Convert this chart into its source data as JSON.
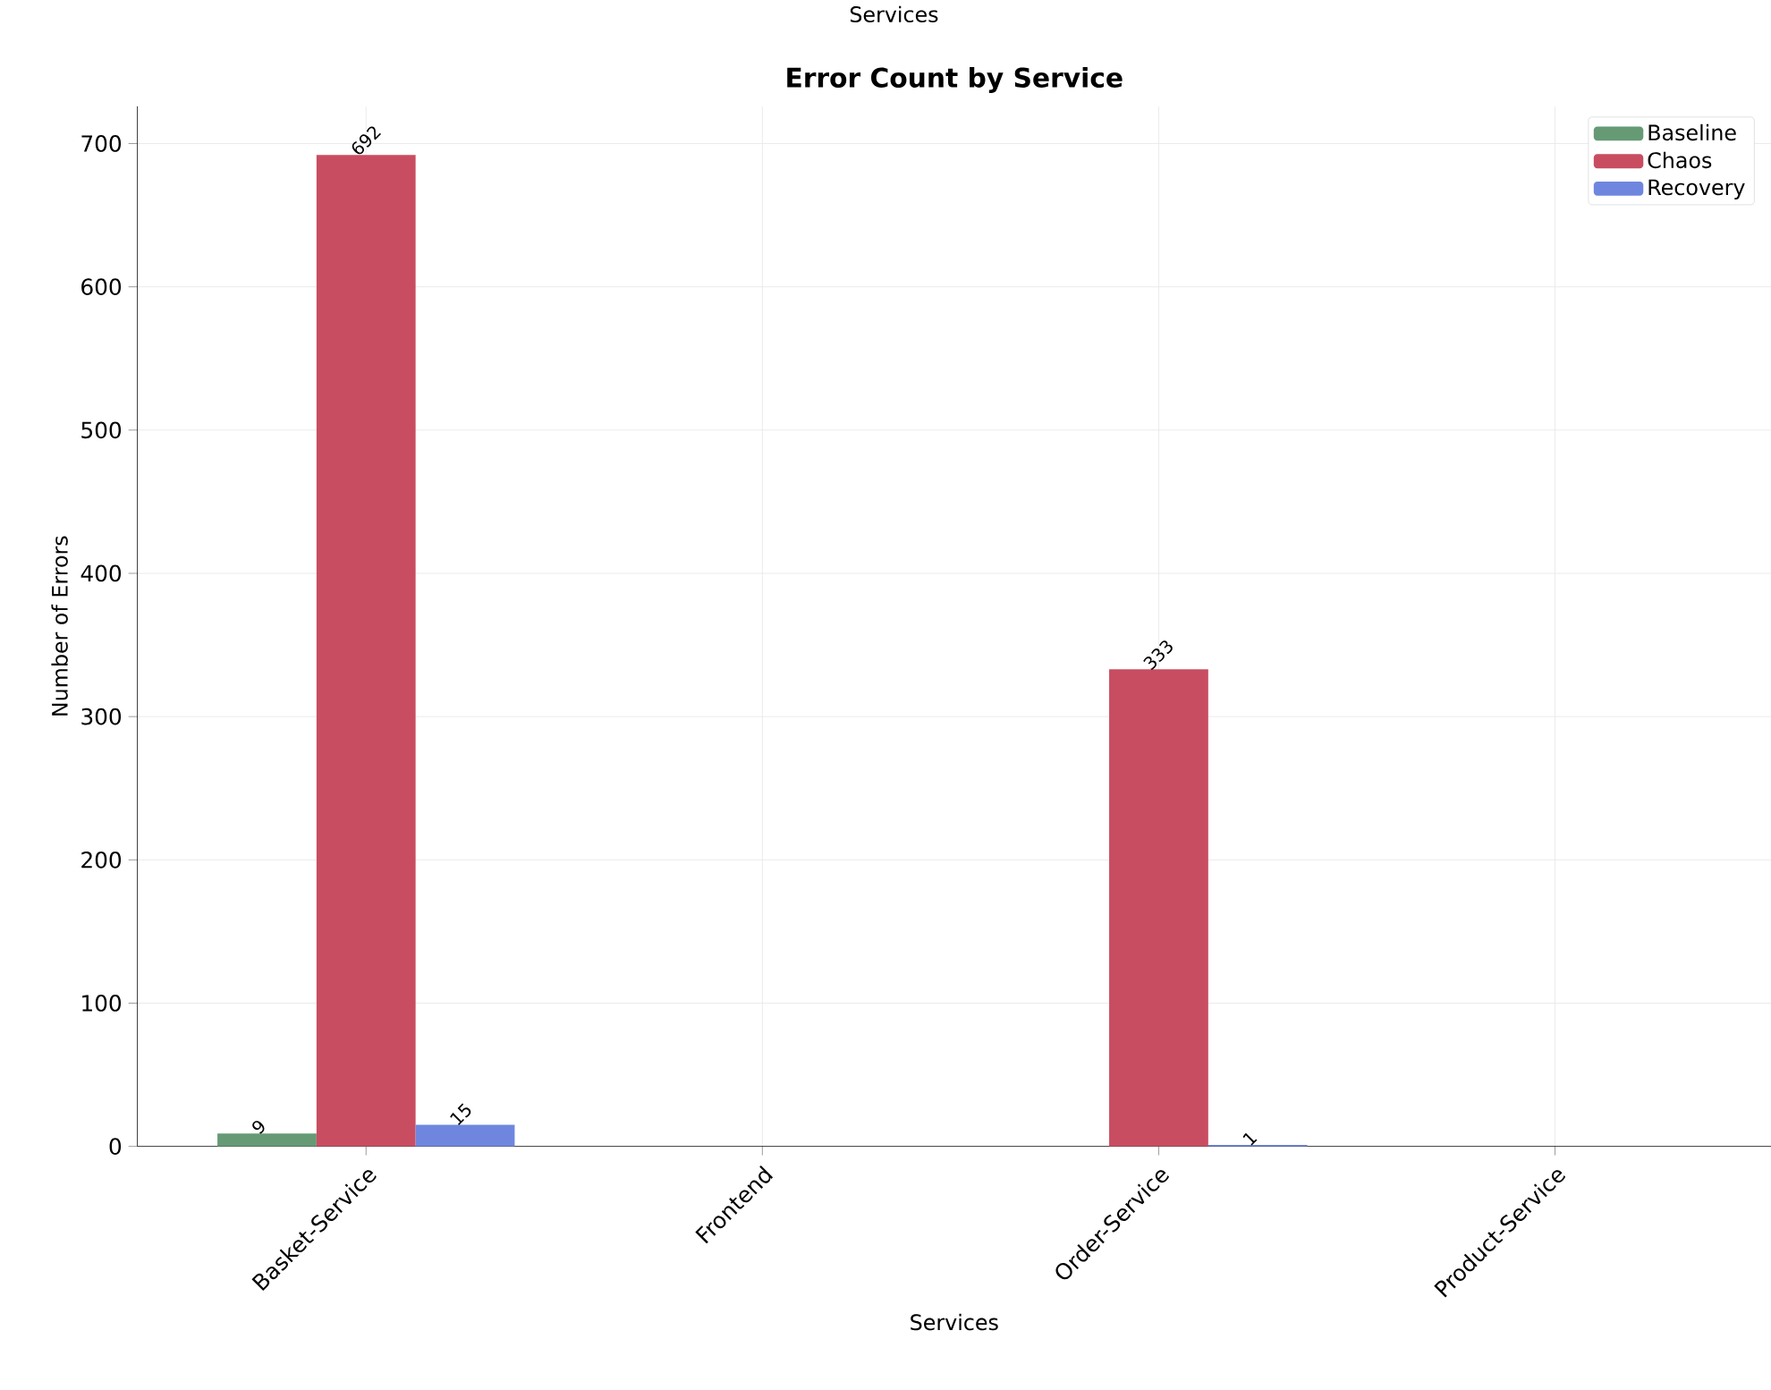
{
  "chart_data": {
    "type": "bar",
    "title": "Error Count by Service",
    "xlabel": "Services",
    "ylabel": "Number of Errors",
    "annotations": [
      "Services"
    ],
    "categories": [
      "Basket-Service",
      "Frontend",
      "Order-Service",
      "Product-Service"
    ],
    "series": [
      {
        "name": "Baseline",
        "color": "#659a74",
        "values": [
          9,
          0,
          0,
          0
        ],
        "value_labels": [
          "9",
          null,
          null,
          null
        ]
      },
      {
        "name": "Chaos",
        "color": "#c94d61",
        "values": [
          692,
          0,
          333,
          0
        ],
        "value_labels": [
          "692",
          null,
          "333",
          null
        ]
      },
      {
        "name": "Recovery",
        "color": "#6f86df",
        "values": [
          15,
          0,
          1,
          0
        ],
        "value_labels": [
          "15",
          null,
          "1",
          null
        ]
      }
    ],
    "ylim": [
      0,
      726
    ],
    "yticks": [
      0,
      100,
      200,
      300,
      400,
      500,
      600,
      700
    ],
    "grid": true,
    "legend": "top right"
  }
}
